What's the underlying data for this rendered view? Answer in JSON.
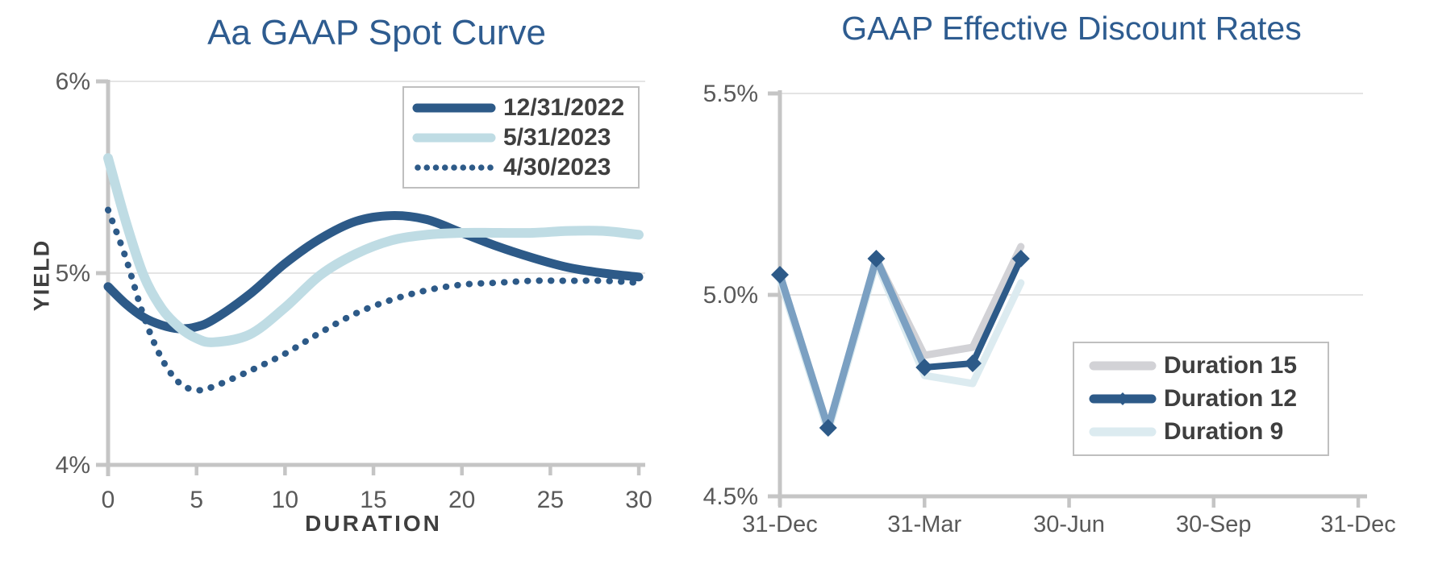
{
  "page": {
    "background": "#FFFFFF",
    "accent_title_color": "#2E5C90",
    "axis_line_color": "#C5C5C5",
    "gridline_color": "#DCDCDC",
    "tick_label_color": "#595959",
    "axis_title_color": "#3F3F3F",
    "legend_text_color": "#3F3F3F"
  },
  "chart_data": [
    {
      "type": "line",
      "title": "Aa GAAP Spot Curve",
      "xlabel": "DURATION",
      "ylabel": "YIELD",
      "xlim": [
        0,
        30
      ],
      "ylim": [
        4,
        6
      ],
      "grid": "horizontal gridlines at 5% and 6% only",
      "legend_position": "top-right",
      "x": [
        0,
        1,
        2,
        3,
        4,
        5,
        6,
        8,
        10,
        12,
        14,
        16,
        18,
        20,
        22,
        24,
        26,
        28,
        30
      ],
      "xticks": {
        "values": [
          0,
          5,
          10,
          15,
          20,
          25,
          30
        ],
        "labels": [
          "0",
          "5",
          "10",
          "15",
          "20",
          "25",
          "30"
        ]
      },
      "yticks": {
        "values": [
          6,
          5,
          4
        ],
        "labels": [
          "6%",
          "5%",
          "4%"
        ]
      },
      "series": [
        {
          "name": "12/31/2022",
          "color": "#2D5A88",
          "style": "solid",
          "width": 11,
          "values": [
            4.93,
            4.84,
            4.77,
            4.73,
            4.71,
            4.72,
            4.76,
            4.89,
            5.05,
            5.18,
            5.27,
            5.3,
            5.28,
            5.21,
            5.14,
            5.08,
            5.03,
            5.0,
            4.98
          ]
        },
        {
          "name": "5/31/2023",
          "color": "#BFDCE4",
          "style": "solid",
          "width": 12,
          "values": [
            5.6,
            5.27,
            4.99,
            4.82,
            4.72,
            4.66,
            4.64,
            4.68,
            4.82,
            4.99,
            5.1,
            5.17,
            5.2,
            5.21,
            5.21,
            5.21,
            5.22,
            5.22,
            5.2
          ]
        },
        {
          "name": "4/30/2023",
          "color": "#2D5A88",
          "style": "dotted",
          "width": 8,
          "values": [
            5.33,
            5.08,
            4.78,
            4.56,
            4.43,
            4.39,
            4.41,
            4.49,
            4.58,
            4.69,
            4.79,
            4.86,
            4.91,
            4.94,
            4.95,
            4.96,
            4.96,
            4.96,
            4.95
          ]
        }
      ]
    },
    {
      "type": "line",
      "title": "GAAP Effective Discount Rates",
      "xlabel": "",
      "ylabel": "",
      "ylim": [
        4.5,
        5.5
      ],
      "grid": "horizontal gridlines at 5.0% and 5.5%",
      "legend_position": "middle-right",
      "x_months": [
        0,
        1,
        2,
        3,
        4,
        5
      ],
      "x_dates": [
        "31-Dec",
        "31-Jan",
        "28-Feb",
        "31-Mar",
        "30-Apr",
        "31-May"
      ],
      "xticks": {
        "month_positions": [
          0,
          3,
          6,
          9,
          12
        ],
        "labels": [
          "31-Dec",
          "31-Mar",
          "30-Jun",
          "30-Sep",
          "31-Dec"
        ]
      },
      "yticks": {
        "values": [
          5.5,
          5.0,
          4.5
        ],
        "labels": [
          "5.5%",
          "5.0%",
          "4.5%"
        ]
      },
      "overlap_blend_color": "#7BA0C2",
      "series": [
        {
          "name": "Duration 15",
          "color": "#D2D2D6",
          "style": "solid",
          "width": 9,
          "marker": "none",
          "values": [
            5.05,
            4.67,
            5.09,
            4.85,
            4.87,
            5.12
          ]
        },
        {
          "name": "Duration 12",
          "color": "#2D5A88",
          "style": "solid",
          "width": 8,
          "marker": "diamond",
          "values": [
            5.05,
            4.67,
            5.09,
            4.82,
            4.83,
            5.09
          ]
        },
        {
          "name": "Duration 9",
          "color": "#DCEBF0",
          "style": "solid",
          "width": 9,
          "marker": "none",
          "values": [
            5.04,
            4.66,
            5.08,
            4.8,
            4.78,
            5.03
          ]
        }
      ]
    }
  ]
}
